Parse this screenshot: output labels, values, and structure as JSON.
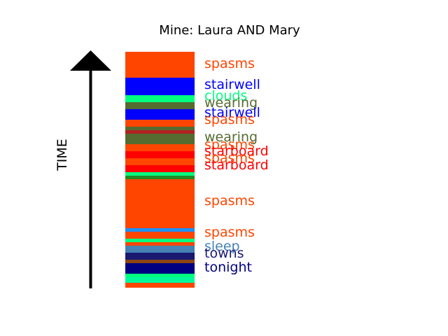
{
  "chart_data": {
    "type": "bar",
    "title": "Mine: Laura AND Mary",
    "axis_label": "TIME",
    "bands": [
      {
        "color": "#ff4500"
      },
      {
        "color": "#0000ff"
      },
      {
        "color": "#00ff7f"
      },
      {
        "color": "#556b2f"
      },
      {
        "color": "#0000ff"
      },
      {
        "color": "#ff4500"
      },
      {
        "color": "#556b2f"
      },
      {
        "color": "#b22222"
      },
      {
        "color": "#556b2f"
      },
      {
        "color": "#ff4500"
      },
      {
        "color": "#ff0000"
      },
      {
        "color": "#ff4500"
      },
      {
        "color": "#ff0000"
      },
      {
        "color": "#00ff7f"
      },
      {
        "color": "#228b22"
      },
      {
        "color": "#ff4500"
      },
      {
        "color": "#1e90ff"
      },
      {
        "color": "#ff4500"
      },
      {
        "color": "#00ff7f"
      },
      {
        "color": "#ff4500"
      },
      {
        "color": "#4682b4"
      },
      {
        "color": "#191970"
      },
      {
        "color": "#8b4513"
      },
      {
        "color": "#000080"
      },
      {
        "color": "#00ff7f"
      },
      {
        "color": "#00fa9a"
      },
      {
        "color": "#ff4500"
      }
    ],
    "labels": [
      {
        "text": "spasms",
        "color": "#ff4500"
      },
      {
        "text": "stairwell",
        "color": "#0000ff"
      },
      {
        "text": "clouds",
        "color": "#00ff7f"
      },
      {
        "text": "wearing",
        "color": "#556b2f"
      },
      {
        "text": "stairwell",
        "color": "#0000ff"
      },
      {
        "text": "spasms",
        "color": "#ff4500"
      },
      {
        "text": "wearing",
        "color": "#556b2f"
      },
      {
        "text": "spasms",
        "color": "#ff4500"
      },
      {
        "text": "starboard",
        "color": "#ff0000"
      },
      {
        "text": "spasms",
        "color": "#ff4500"
      },
      {
        "text": "starboard",
        "color": "#ff0000"
      },
      {
        "text": "spasms",
        "color": "#ff4500"
      },
      {
        "text": "spasms",
        "color": "#ff4500"
      },
      {
        "text": "sleep",
        "color": "#4682b4"
      },
      {
        "text": "towns",
        "color": "#191970"
      },
      {
        "text": "tonight",
        "color": "#000080"
      }
    ]
  }
}
